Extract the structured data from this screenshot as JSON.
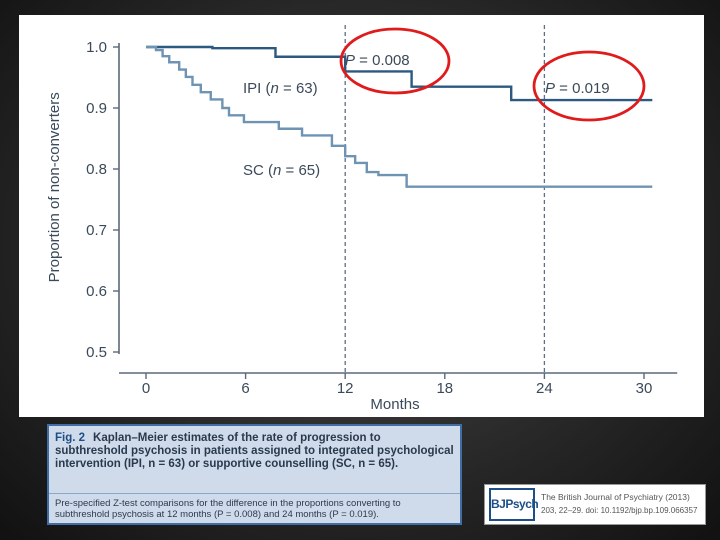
{
  "chart_data": {
    "type": "line",
    "title": "",
    "xlabel": "Months",
    "ylabel": "Proportion of non-converters",
    "xlim": [
      -1,
      32
    ],
    "ylim": [
      0.5,
      1.0
    ],
    "xticks": [
      0,
      6,
      12,
      18,
      24,
      30
    ],
    "yticks": [
      0.5,
      0.6,
      0.7,
      0.8,
      0.9,
      1.0
    ],
    "ytick_labels": [
      "0.5",
      "0.6",
      "0.7",
      "0.8",
      "0.9",
      "1.0"
    ],
    "grid": false,
    "reference_lines_x": [
      12,
      24
    ],
    "series": [
      {
        "name": "IPI (n = 63)",
        "color": "#2d5880",
        "x": [
          0,
          4,
          7.8,
          12,
          16,
          22,
          30.5
        ],
        "y": [
          1.0,
          0.998,
          0.984,
          0.96,
          0.935,
          0.913,
          0.913
        ]
      },
      {
        "name": "SC (n = 65)",
        "color": "#6e93b3",
        "x": [
          0,
          0.6,
          1.0,
          1.4,
          2.0,
          2.4,
          2.8,
          3.3,
          3.9,
          4.6,
          5.0,
          5.9,
          8.0,
          9.4,
          11.2,
          12.0,
          12.6,
          13.3,
          14.0,
          15.7,
          30.5
        ],
        "y": [
          1.0,
          0.995,
          0.985,
          0.975,
          0.963,
          0.951,
          0.938,
          0.926,
          0.914,
          0.9,
          0.888,
          0.877,
          0.866,
          0.855,
          0.838,
          0.821,
          0.81,
          0.795,
          0.79,
          0.771,
          0.771
        ]
      }
    ],
    "annotations": [
      "P = 0.008",
      "P = 0.019"
    ],
    "series_labels": [
      "IPI (",
      "n",
      " = 63)",
      "SC (",
      "n",
      " = 65)"
    ]
  },
  "caption": {
    "fig_label": "Fig. 2",
    "text": "Kaplan–Meier estimates of the rate of progression to subthreshold psychosis in patients assigned to integrated psychological intervention (IPI, n = 63) or supportive counselling (SC, n = 65).",
    "note": "Pre-specified Z-test comparisons for the difference in the proportions converting to subthreshold psychosis at 12 months (P = 0.008) and 24 months (P = 0.019)."
  },
  "journal": {
    "logo": "BJPsych",
    "name": "The British Journal of Psychiatry (2013)",
    "ref": "203, 22–29. doi: 10.1192/bjp.bp.109.066357"
  },
  "colors": {
    "circle": "#e01b1b",
    "ref_line": "#5b6f86",
    "axis": "#5a6a7a",
    "caption_bg": "#cfdbea",
    "caption_border": "#3f6ea5"
  }
}
